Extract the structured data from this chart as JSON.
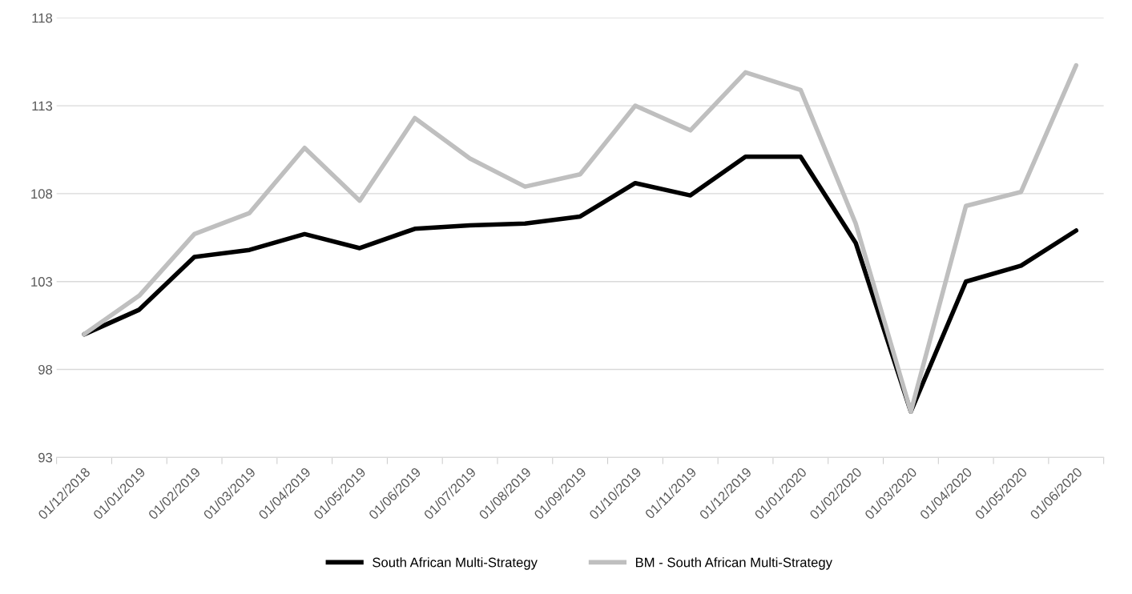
{
  "chart_data": {
    "type": "line",
    "categories": [
      "01/12/2018",
      "01/01/2019",
      "01/02/2019",
      "01/03/2019",
      "01/04/2019",
      "01/05/2019",
      "01/06/2019",
      "01/07/2019",
      "01/08/2019",
      "01/09/2019",
      "01/10/2019",
      "01/11/2019",
      "01/12/2019",
      "01/01/2020",
      "01/02/2020",
      "01/03/2020",
      "01/04/2020",
      "01/05/2020",
      "01/06/2020"
    ],
    "series": [
      {
        "name": "South African Multi-Strategy",
        "color": "#000000",
        "values": [
          100,
          101.4,
          104.4,
          104.8,
          105.7,
          104.9,
          106.0,
          106.2,
          106.3,
          106.7,
          108.6,
          107.9,
          110.1,
          110.1,
          105.2,
          95.6,
          103.0,
          103.9,
          105.9
        ]
      },
      {
        "name": "BM - South African Multi-Strategy",
        "color": "#bfbfbf",
        "values": [
          100,
          102.2,
          105.7,
          106.9,
          110.6,
          107.6,
          112.3,
          110.0,
          108.4,
          109.1,
          113.0,
          111.6,
          114.9,
          113.9,
          106.3,
          95.6,
          107.3,
          108.1,
          115.3
        ]
      }
    ],
    "ylim": [
      93,
      118
    ],
    "yticks": [
      93,
      98,
      103,
      108,
      113,
      118
    ],
    "grid": "y",
    "legend": "bottom",
    "marker": "none",
    "line_style": "solid"
  }
}
